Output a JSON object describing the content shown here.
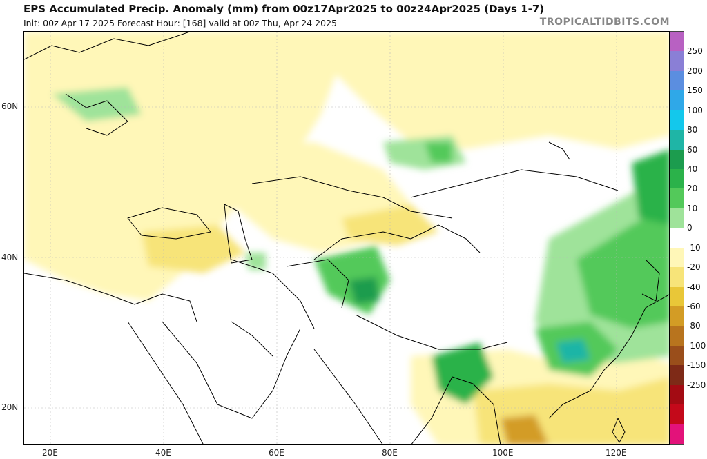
{
  "header": {
    "title": "EPS Accumulated Precip. Anomaly (mm) from 00z17Apr2025 to 00z24Apr2025 (Days 1-7)",
    "subtitle": "Init: 00z Apr 17 2025   Forecast Hour: [168]   valid at 00z Thu, Apr 24 2025",
    "brand": "TROPICALTIDBITS.COM"
  },
  "axes": {
    "lat_labels": [
      "60N",
      "40N",
      "20N"
    ],
    "lon_labels": [
      "20E",
      "40E",
      "60E",
      "80E",
      "100E",
      "120E"
    ]
  },
  "colorbar": {
    "labels": [
      "250",
      "200",
      "150",
      "100",
      "80",
      "60",
      "40",
      "20",
      "10",
      "0",
      "-10",
      "-20",
      "-40",
      "-60",
      "-80",
      "-100",
      "-150",
      "-250"
    ],
    "colors": [
      "#b861c2",
      "#8a7fd6",
      "#5b8ee0",
      "#2fa8e8",
      "#13c8ec",
      "#1fb5a6",
      "#1c9c4e",
      "#2bb24a",
      "#53c95a",
      "#9fe39a",
      "#ffffff",
      "#fff7b8",
      "#f7e479",
      "#e9c738",
      "#d39c25",
      "#b8741e",
      "#9a4e1b",
      "#7e2a17",
      "#a30b13",
      "#c4091a",
      "#e3127a"
    ]
  }
}
